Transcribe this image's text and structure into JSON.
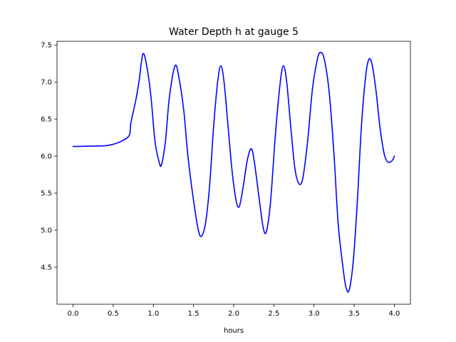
{
  "chart_data": {
    "type": "line",
    "title": "Water Depth h at gauge 5",
    "xlabel": "hours",
    "ylabel": "",
    "xlim": [
      -0.2,
      4.2
    ],
    "ylim": [
      4.0,
      7.55
    ],
    "xticks": [
      0.0,
      0.5,
      1.0,
      1.5,
      2.0,
      2.5,
      3.0,
      3.5,
      4.0
    ],
    "xtick_labels": [
      "0.0",
      "0.5",
      "1.0",
      "1.5",
      "2.0",
      "2.5",
      "3.0",
      "3.5",
      "4.0"
    ],
    "yticks": [
      4.5,
      5.0,
      5.5,
      6.0,
      6.5,
      7.0,
      7.5
    ],
    "ytick_labels": [
      "4.5",
      "5.0",
      "5.5",
      "6.0",
      "6.5",
      "7.0",
      "7.5"
    ],
    "grid": false,
    "series": [
      {
        "name": "",
        "color": "#0000ff",
        "points": [
          [
            0.0,
            6.13
          ],
          [
            0.2,
            6.135
          ],
          [
            0.4,
            6.14
          ],
          [
            0.5,
            6.16
          ],
          [
            0.6,
            6.2
          ],
          [
            0.7,
            6.28
          ],
          [
            0.72,
            6.45
          ],
          [
            0.78,
            6.75
          ],
          [
            0.82,
            7.0
          ],
          [
            0.87,
            7.38
          ],
          [
            0.92,
            7.2
          ],
          [
            0.97,
            6.8
          ],
          [
            1.02,
            6.2
          ],
          [
            1.07,
            5.93
          ],
          [
            1.1,
            5.88
          ],
          [
            1.15,
            6.2
          ],
          [
            1.2,
            6.8
          ],
          [
            1.27,
            7.22
          ],
          [
            1.32,
            7.05
          ],
          [
            1.38,
            6.6
          ],
          [
            1.43,
            6.0
          ],
          [
            1.5,
            5.4
          ],
          [
            1.56,
            5.0
          ],
          [
            1.6,
            4.92
          ],
          [
            1.65,
            5.1
          ],
          [
            1.7,
            5.6
          ],
          [
            1.75,
            6.4
          ],
          [
            1.8,
            7.0
          ],
          [
            1.84,
            7.22
          ],
          [
            1.88,
            7.0
          ],
          [
            1.93,
            6.4
          ],
          [
            1.98,
            5.8
          ],
          [
            2.03,
            5.4
          ],
          [
            2.07,
            5.32
          ],
          [
            2.12,
            5.6
          ],
          [
            2.17,
            5.95
          ],
          [
            2.22,
            6.1
          ],
          [
            2.26,
            5.9
          ],
          [
            2.32,
            5.4
          ],
          [
            2.37,
            5.02
          ],
          [
            2.41,
            4.99
          ],
          [
            2.46,
            5.4
          ],
          [
            2.52,
            6.3
          ],
          [
            2.58,
            7.0
          ],
          [
            2.62,
            7.22
          ],
          [
            2.66,
            7.0
          ],
          [
            2.71,
            6.4
          ],
          [
            2.76,
            5.85
          ],
          [
            2.81,
            5.63
          ],
          [
            2.86,
            5.7
          ],
          [
            2.92,
            6.2
          ],
          [
            2.98,
            6.9
          ],
          [
            3.04,
            7.3
          ],
          [
            3.08,
            7.4
          ],
          [
            3.13,
            7.3
          ],
          [
            3.19,
            6.85
          ],
          [
            3.25,
            6.0
          ],
          [
            3.3,
            5.1
          ],
          [
            3.36,
            4.5
          ],
          [
            3.4,
            4.22
          ],
          [
            3.44,
            4.2
          ],
          [
            3.49,
            4.6
          ],
          [
            3.54,
            5.4
          ],
          [
            3.59,
            6.4
          ],
          [
            3.64,
            7.05
          ],
          [
            3.68,
            7.3
          ],
          [
            3.72,
            7.25
          ],
          [
            3.77,
            6.9
          ],
          [
            3.82,
            6.4
          ],
          [
            3.87,
            6.05
          ],
          [
            3.91,
            5.93
          ],
          [
            3.95,
            5.92
          ],
          [
            3.98,
            5.95
          ],
          [
            4.0,
            6.0
          ]
        ]
      }
    ]
  }
}
